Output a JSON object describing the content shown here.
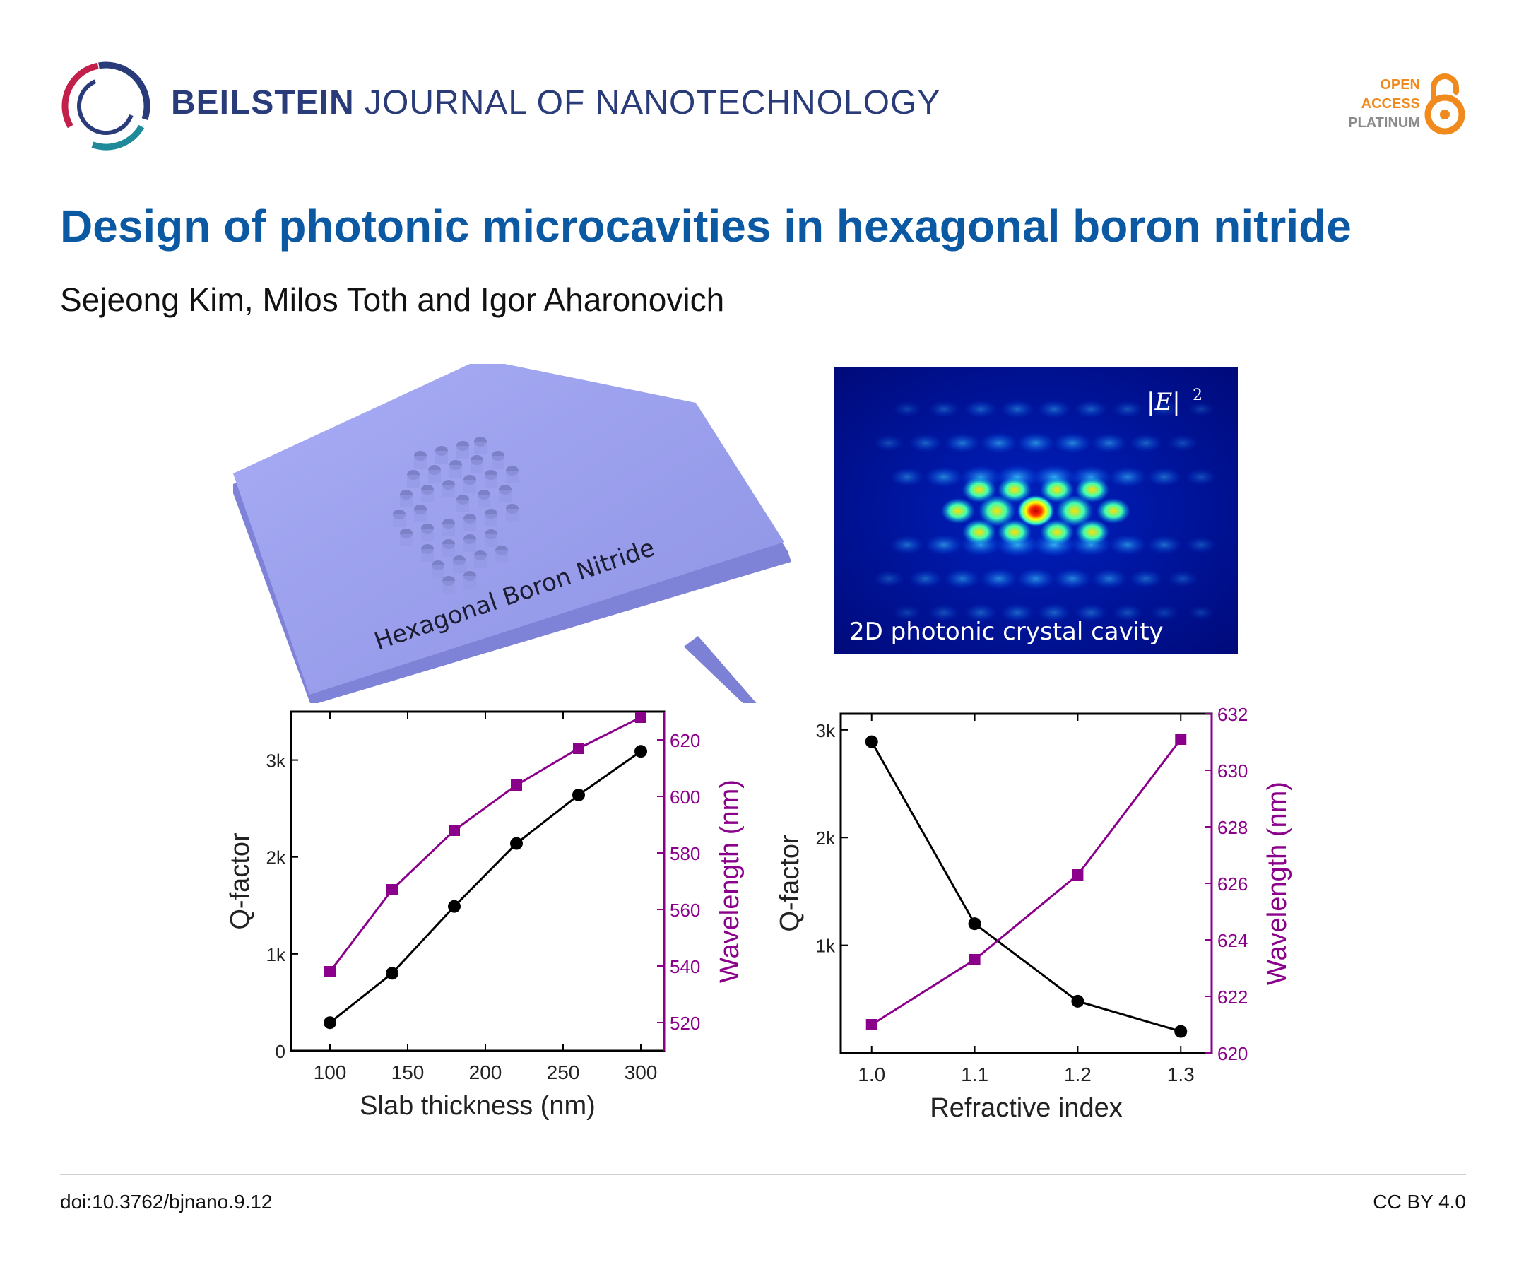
{
  "header": {
    "journal_bold": "BEILSTEIN",
    "journal_rest": "JOURNAL OF NANOTECHNOLOGY",
    "oa_line1": "OPEN",
    "oa_line2": "ACCESS",
    "oa_line3": "PLATINUM",
    "oa_color": "#f08a1c",
    "platinum_color": "#8a8a8a",
    "logo_icon": "beilstein-logo-icon",
    "open_access_icon": "open-lock-icon"
  },
  "article": {
    "title": "Design of photonic microcavities in hexagonal boron nitride",
    "title_color": "#0b59a3",
    "authors": "Sejeong Kim, Milos Toth and Igor Aharonovich"
  },
  "figure": {
    "slab_label": "Hexagonal Boron Nitride",
    "field_label": "2D photonic crystal cavity",
    "field_symbol": "|E|",
    "field_exponent": "2"
  },
  "chart_data": [
    {
      "type": "line",
      "xlabel": "Slab thickness (nm)",
      "ylabel": "Q-factor",
      "y2label": "Wavelength (nm)",
      "xlim": [
        75,
        315
      ],
      "ylim": [
        0,
        3500
      ],
      "y2lim": [
        510,
        630
      ],
      "x_ticks": [
        "100",
        "150",
        "200",
        "250",
        "300"
      ],
      "x_tick_values": [
        100,
        150,
        200,
        250,
        300
      ],
      "y_ticks": [
        "0",
        "1k",
        "2k",
        "3k"
      ],
      "y_tick_values": [
        0,
        1000,
        2000,
        3000
      ],
      "y2_ticks": [
        "520",
        "540",
        "560",
        "580",
        "600",
        "620"
      ],
      "y2_tick_values": [
        520,
        540,
        560,
        580,
        600,
        620
      ],
      "series": [
        {
          "name": "Q-factor",
          "axis": "left",
          "color": "#000000",
          "marker": "circle",
          "x": [
            100,
            140,
            180,
            220,
            260,
            300
          ],
          "y": [
            290,
            800,
            1490,
            2140,
            2640,
            3090
          ]
        },
        {
          "name": "Wavelength",
          "axis": "right",
          "color": "#8b008b",
          "marker": "square",
          "x": [
            100,
            140,
            180,
            220,
            260,
            300
          ],
          "y": [
            538,
            567,
            588,
            604,
            617,
            628
          ]
        }
      ]
    },
    {
      "type": "line",
      "xlabel": "Refractive index",
      "ylabel": "Q-factor",
      "y2label": "Wavelength (nm)",
      "xlim": [
        0.97,
        1.33
      ],
      "ylim": [
        0,
        3150
      ],
      "y2lim": [
        620,
        632
      ],
      "x_ticks": [
        "1.0",
        "1.1",
        "1.2",
        "1.3"
      ],
      "x_tick_values": [
        1.0,
        1.1,
        1.2,
        1.3
      ],
      "y_ticks": [
        "1k",
        "2k",
        "3k"
      ],
      "y_tick_values": [
        1000,
        2000,
        3000
      ],
      "y2_ticks": [
        "620",
        "622",
        "624",
        "626",
        "628",
        "630",
        "632"
      ],
      "y2_tick_values": [
        620,
        622,
        624,
        626,
        628,
        630,
        632
      ],
      "series": [
        {
          "name": "Q-factor",
          "axis": "left",
          "color": "#000000",
          "marker": "circle",
          "x": [
            1.0,
            1.1,
            1.2,
            1.3
          ],
          "y": [
            2890,
            1200,
            480,
            200
          ]
        },
        {
          "name": "Wavelength",
          "axis": "right",
          "color": "#8b008b",
          "marker": "square",
          "x": [
            1.0,
            1.1,
            1.2,
            1.3
          ],
          "y": [
            621,
            623.3,
            626.3,
            631.1
          ]
        }
      ]
    }
  ],
  "footer": {
    "doi": "doi:10.3762/bjnano.9.12",
    "license": "CC BY 4.0"
  }
}
